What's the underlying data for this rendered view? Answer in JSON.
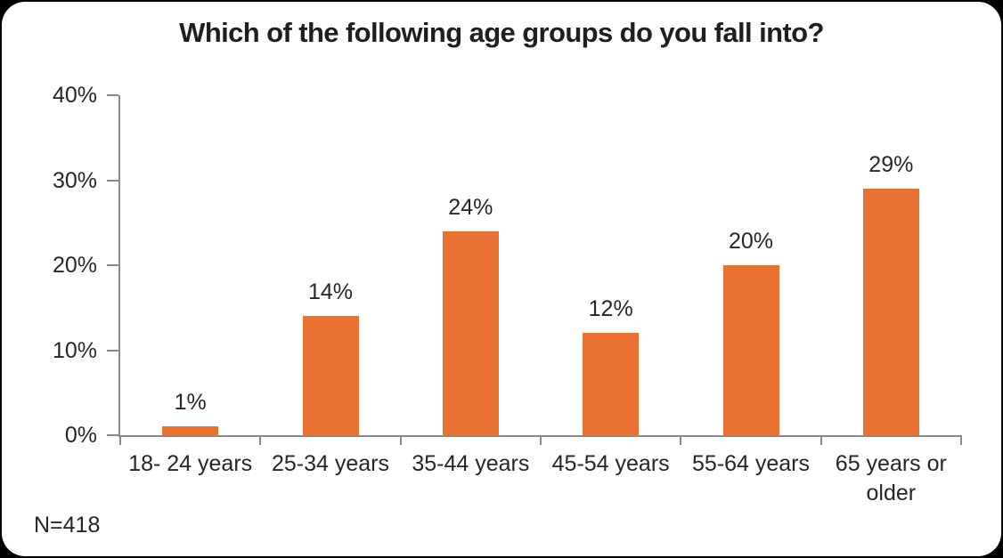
{
  "page": {
    "background_color": "#000000",
    "card_color": "#ffffff"
  },
  "chart_data": {
    "type": "bar",
    "title": "Which of the following age groups do you fall into?",
    "categories": [
      "18- 24 years",
      "25-34 years",
      "35-44 years",
      "45-54 years",
      "55-64 years",
      "65 years or older"
    ],
    "values": [
      1,
      14,
      24,
      12,
      20,
      29
    ],
    "data_labels": [
      "1%",
      "14%",
      "24%",
      "12%",
      "20%",
      "29%"
    ],
    "y_ticks": [
      0,
      10,
      20,
      30,
      40
    ],
    "y_tick_labels": [
      "0%",
      "10%",
      "20%",
      "30%",
      "40%"
    ],
    "ylim": [
      0,
      40
    ],
    "xlabel": "",
    "ylabel": "",
    "grid": false,
    "legend": false,
    "bar_color": "#E97132",
    "axis_color": "#898989",
    "text_color": "#262626",
    "note": "N=418"
  }
}
